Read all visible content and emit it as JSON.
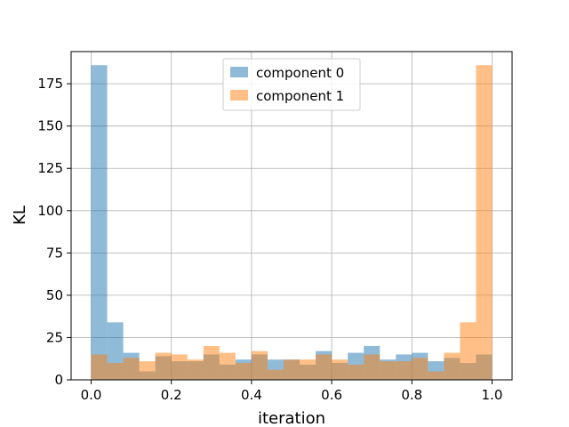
{
  "chart_data": {
    "type": "bar",
    "subtype": "histogram-overlay",
    "title": "",
    "xlabel": "iteration",
    "ylabel": "KL",
    "xlim": [
      -0.05,
      1.05
    ],
    "ylim": [
      0,
      194
    ],
    "bins": {
      "start": 0.0,
      "width": 0.04,
      "count": 25
    },
    "x_ticks": [
      0.0,
      0.2,
      0.4,
      0.6,
      0.8,
      1.0
    ],
    "x_tick_labels": [
      "0.0",
      "0.2",
      "0.4",
      "0.6",
      "0.8",
      "1.0"
    ],
    "y_ticks": [
      0,
      25,
      50,
      75,
      100,
      125,
      150,
      175
    ],
    "y_tick_labels": [
      "0",
      "25",
      "50",
      "75",
      "100",
      "125",
      "150",
      "175"
    ],
    "grid": true,
    "legend_placement": "top-center",
    "series": [
      {
        "name": "component 0",
        "color": "#1f77b4",
        "alpha": 0.5,
        "values": [
          186,
          34,
          16,
          5,
          14,
          11,
          11,
          15,
          9,
          12,
          15,
          12,
          12,
          9,
          17,
          10,
          16,
          20,
          12,
          15,
          16,
          11,
          13,
          10,
          15
        ]
      },
      {
        "name": "component 1",
        "color": "#ff7f0e",
        "alpha": 0.5,
        "values": [
          15,
          10,
          13,
          11,
          16,
          15,
          12,
          20,
          16,
          10,
          17,
          6,
          12,
          12,
          15,
          12,
          9,
          15,
          11,
          11,
          13,
          5,
          16,
          34,
          186
        ]
      }
    ]
  }
}
